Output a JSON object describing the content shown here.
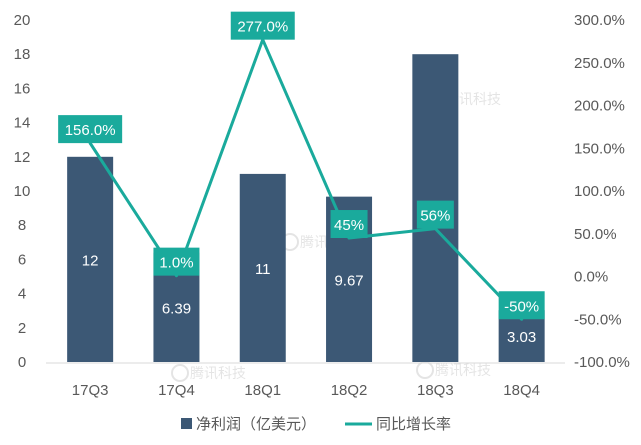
{
  "chart_data": {
    "type": "bar",
    "categories": [
      "17Q3",
      "17Q4",
      "18Q1",
      "18Q2",
      "18Q3",
      "18Q4"
    ],
    "series": [
      {
        "name": "净利润（亿美元）",
        "type": "bar",
        "axis": "left",
        "values": [
          12,
          6.39,
          11,
          9.67,
          18,
          3.03
        ],
        "labels": [
          "12",
          "6.39",
          "11",
          "9.67",
          "",
          "3.03"
        ]
      },
      {
        "name": "同比增长率",
        "type": "line",
        "axis": "right",
        "values": [
          156.0,
          1.0,
          277.0,
          45,
          56,
          -50
        ],
        "labels": [
          "156.0%",
          "1.0%",
          "277.0%",
          "45%",
          "56%",
          "-50%"
        ]
      }
    ],
    "y_left": {
      "ylim": [
        0,
        20
      ],
      "ticks": [
        "0",
        "2",
        "4",
        "6",
        "8",
        "10",
        "12",
        "14",
        "16",
        "18",
        "20"
      ]
    },
    "y_right": {
      "ylim": [
        -100,
        300
      ],
      "ticks": [
        "-100.0%",
        "-50.0%",
        "0.0%",
        "50.0%",
        "100.0%",
        "150.0%",
        "200.0%",
        "250.0%",
        "300.0%"
      ]
    },
    "legend": {
      "placement": "bottom-center"
    },
    "watermark": "腾讯科技",
    "colors": {
      "bar": "#3c5875",
      "line": "#1aaa9c",
      "label_box": "#1aaa9c",
      "axis_text": "#595959",
      "axis_line": "#d9d9d9"
    }
  }
}
